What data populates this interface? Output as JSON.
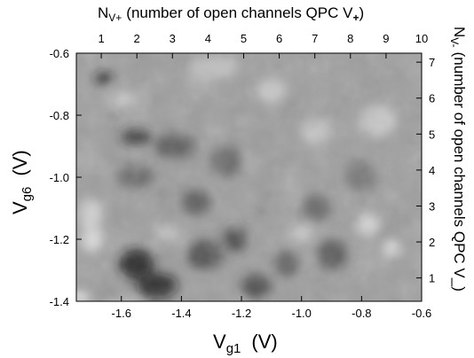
{
  "chart_data": {
    "type": "heatmap",
    "colormap": "grayscale (dark = low, light = high)",
    "axes": {
      "bottom": {
        "label_main": "V",
        "label_sub": "g1",
        "label_unit": "(V)",
        "range": [
          -1.75,
          -0.6
        ],
        "ticks": [
          {
            "value": -1.6,
            "label": "-1.6"
          },
          {
            "value": -1.4,
            "label": "-1.4"
          },
          {
            "value": -1.2,
            "label": "-1.2"
          },
          {
            "value": -1.0,
            "label": "-1.0"
          },
          {
            "value": -0.8,
            "label": "-0.8"
          },
          {
            "value": -0.6,
            "label": "-0.6"
          }
        ]
      },
      "left": {
        "label_main": "V",
        "label_sub": "g6",
        "label_unit": "(V)",
        "range": [
          -1.4,
          -0.6
        ],
        "ticks": [
          {
            "value": -0.6,
            "label": "-0.6"
          },
          {
            "value": -0.8,
            "label": "-0.8"
          },
          {
            "value": -1.0,
            "label": "-1.0"
          },
          {
            "value": -1.2,
            "label": "-1.2"
          },
          {
            "value": -1.4,
            "label": "-1.4"
          }
        ]
      },
      "top": {
        "label_main": "N",
        "label_sub": "V+",
        "label_rest_before": "(number of open channels QPC V",
        "label_rest_sub": "+",
        "label_rest_after": ")",
        "range": [
          0.3,
          10
        ],
        "ticks": [
          {
            "value": 1,
            "label": "1"
          },
          {
            "value": 2,
            "label": "2"
          },
          {
            "value": 3,
            "label": "3"
          },
          {
            "value": 4,
            "label": "4"
          },
          {
            "value": 5,
            "label": "5"
          },
          {
            "value": 6,
            "label": "6"
          },
          {
            "value": 7,
            "label": "7"
          },
          {
            "value": 8,
            "label": "8"
          },
          {
            "value": 9,
            "label": "9"
          },
          {
            "value": 10,
            "label": "10"
          }
        ]
      },
      "right": {
        "label_main": "N",
        "label_sub": "V-",
        "label_rest": "(number of open channels QPC V_)",
        "range": [
          0.35,
          7.25
        ],
        "ticks": [
          {
            "value": 1,
            "label": "1"
          },
          {
            "value": 2,
            "label": "2"
          },
          {
            "value": 3,
            "label": "3"
          },
          {
            "value": 4,
            "label": "4"
          },
          {
            "value": 5,
            "label": "5"
          },
          {
            "value": 6,
            "label": "6"
          },
          {
            "value": 7,
            "label": "7"
          }
        ]
      }
    },
    "grid": false,
    "legend": "none",
    "background_level": 0.62,
    "features": [
      {
        "x": -1.66,
        "y": -0.68,
        "level": 0.1,
        "sx": 0.03,
        "sy": 0.02
      },
      {
        "x": -1.55,
        "y": -0.87,
        "level": 0.15,
        "sx": 0.05,
        "sy": 0.025
      },
      {
        "x": -1.42,
        "y": -0.9,
        "level": 0.3,
        "sx": 0.07,
        "sy": 0.04
      },
      {
        "x": -1.55,
        "y": -1.0,
        "level": 0.35,
        "sx": 0.06,
        "sy": 0.04
      },
      {
        "x": -1.35,
        "y": -1.08,
        "level": 0.3,
        "sx": 0.05,
        "sy": 0.04
      },
      {
        "x": -1.55,
        "y": -1.28,
        "level": 0.1,
        "sx": 0.06,
        "sy": 0.05
      },
      {
        "x": -1.48,
        "y": -1.35,
        "level": 0.05,
        "sx": 0.07,
        "sy": 0.04
      },
      {
        "x": -1.32,
        "y": -1.25,
        "level": 0.25,
        "sx": 0.06,
        "sy": 0.05
      },
      {
        "x": -1.22,
        "y": -1.2,
        "level": 0.2,
        "sx": 0.04,
        "sy": 0.04
      },
      {
        "x": -1.15,
        "y": -1.35,
        "level": 0.25,
        "sx": 0.05,
        "sy": 0.04
      },
      {
        "x": -1.05,
        "y": -1.28,
        "level": 0.3,
        "sx": 0.04,
        "sy": 0.04
      },
      {
        "x": -0.9,
        "y": -1.25,
        "level": 0.3,
        "sx": 0.05,
        "sy": 0.05
      },
      {
        "x": -0.95,
        "y": -1.1,
        "level": 0.38,
        "sx": 0.05,
        "sy": 0.04
      },
      {
        "x": -1.25,
        "y": -0.95,
        "level": 0.35,
        "sx": 0.05,
        "sy": 0.05
      },
      {
        "x": -0.8,
        "y": -1.0,
        "level": 0.42,
        "sx": 0.05,
        "sy": 0.05
      },
      {
        "x": -1.7,
        "y": -1.12,
        "level": 0.85,
        "sx": 0.04,
        "sy": 0.05
      },
      {
        "x": -1.7,
        "y": -1.2,
        "level": 0.88,
        "sx": 0.04,
        "sy": 0.04
      },
      {
        "x": -1.45,
        "y": -1.18,
        "level": 0.8,
        "sx": 0.04,
        "sy": 0.03
      },
      {
        "x": -1.3,
        "y": -0.65,
        "level": 0.78,
        "sx": 0.08,
        "sy": 0.04
      },
      {
        "x": -1.1,
        "y": -0.72,
        "level": 0.8,
        "sx": 0.05,
        "sy": 0.04
      },
      {
        "x": -0.95,
        "y": -0.85,
        "level": 0.8,
        "sx": 0.05,
        "sy": 0.04
      },
      {
        "x": -0.75,
        "y": -0.82,
        "level": 0.82,
        "sx": 0.06,
        "sy": 0.05
      },
      {
        "x": -0.7,
        "y": -1.23,
        "level": 0.92,
        "sx": 0.03,
        "sy": 0.03
      },
      {
        "x": -0.78,
        "y": -1.15,
        "level": 0.85,
        "sx": 0.04,
        "sy": 0.04
      },
      {
        "x": -1.0,
        "y": -1.18,
        "level": 0.8,
        "sx": 0.04,
        "sy": 0.03
      },
      {
        "x": -1.6,
        "y": -0.75,
        "level": 0.8,
        "sx": 0.05,
        "sy": 0.03
      },
      {
        "x": -1.74,
        "y": -1.39,
        "level": 0.98,
        "sx": 0.03,
        "sy": 0.02
      },
      {
        "x": -1.6,
        "y": -1.42,
        "level": 0.95,
        "sx": 0.06,
        "sy": 0.015
      }
    ]
  }
}
